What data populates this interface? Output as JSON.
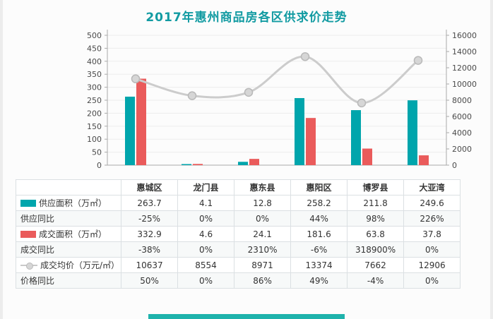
{
  "title": "2017年惠州商品房各区供求价走势",
  "chart_data": {
    "type": "bar+line combo",
    "title": "2017年惠州商品房各区供求价走势",
    "categories": [
      "惠城区",
      "龙门县",
      "惠东县",
      "惠阳区",
      "博罗县",
      "大亚湾"
    ],
    "series": [
      {
        "name": "供应面积（万㎡）",
        "type": "bar",
        "axis": "left",
        "color": "#00a5ac",
        "values": [
          263.7,
          4.1,
          12.8,
          258.2,
          211.8,
          249.6
        ]
      },
      {
        "name": "成交面积（万㎡）",
        "type": "bar",
        "axis": "left",
        "color": "#ea5b5b",
        "values": [
          332.9,
          4.6,
          24.1,
          181.6,
          63.8,
          37.8
        ]
      },
      {
        "name": "成交均价（万元/㎡）",
        "type": "line",
        "axis": "right",
        "color": "#cccccc",
        "marker_fill": "#d6d6d6",
        "marker_stroke": "#b9b9b9",
        "values": [
          10637,
          8554,
          8971,
          13374,
          7662,
          12906
        ]
      }
    ],
    "left_axis": {
      "min": 0,
      "max": 500,
      "step": 50,
      "ticks": [
        "0",
        "50",
        "100",
        "150",
        "200",
        "250",
        "300",
        "350",
        "400",
        "450",
        "500"
      ]
    },
    "right_axis": {
      "min": 0,
      "max": 16000,
      "step": 2000,
      "ticks": [
        "0",
        "2000",
        "4000",
        "6000",
        "8000",
        "10000",
        "12000",
        "14000",
        "16000"
      ]
    },
    "grid": true,
    "legend_position": "in-table-row-labels"
  },
  "table": {
    "header_corner": "",
    "columns": [
      "惠城区",
      "龙门县",
      "惠东县",
      "惠阳区",
      "博罗县",
      "大亚湾"
    ],
    "rows": [
      {
        "label": "供应面积（万㎡）",
        "legend": "teal-bar",
        "values": [
          "263.7",
          "4.1",
          "12.8",
          "258.2",
          "211.8",
          "249.6"
        ]
      },
      {
        "label": "供应同比",
        "legend": null,
        "values": [
          "-25%",
          "0%",
          "0%",
          "44%",
          "98%",
          "226%"
        ]
      },
      {
        "label": "成交面积（万㎡）",
        "legend": "red-bar",
        "values": [
          "332.9",
          "4.6",
          "24.1",
          "181.6",
          "63.8",
          "37.8"
        ]
      },
      {
        "label": "成交同比",
        "legend": null,
        "values": [
          "-38%",
          "0%",
          "2310%",
          "-6%",
          "318900%",
          "0%"
        ]
      },
      {
        "label": "成交均价（万元/㎡）",
        "legend": "gray-line",
        "values": [
          "10637",
          "8554",
          "8971",
          "13374",
          "7662",
          "12906"
        ]
      },
      {
        "label": "价格同比",
        "legend": null,
        "values": [
          "50%",
          "0%",
          "86%",
          "49%",
          "-4%",
          "0%"
        ]
      }
    ]
  },
  "colors": {
    "title": "#129ba2",
    "supply_bar": "#00a5ac",
    "deal_bar": "#ea5b5b",
    "price_line": "#cccccc",
    "axis_line": "#aaaaaa",
    "grid_line": "#ededed",
    "table_border": "#dbe0e3",
    "footer_stripe": "#1fb3ac"
  }
}
